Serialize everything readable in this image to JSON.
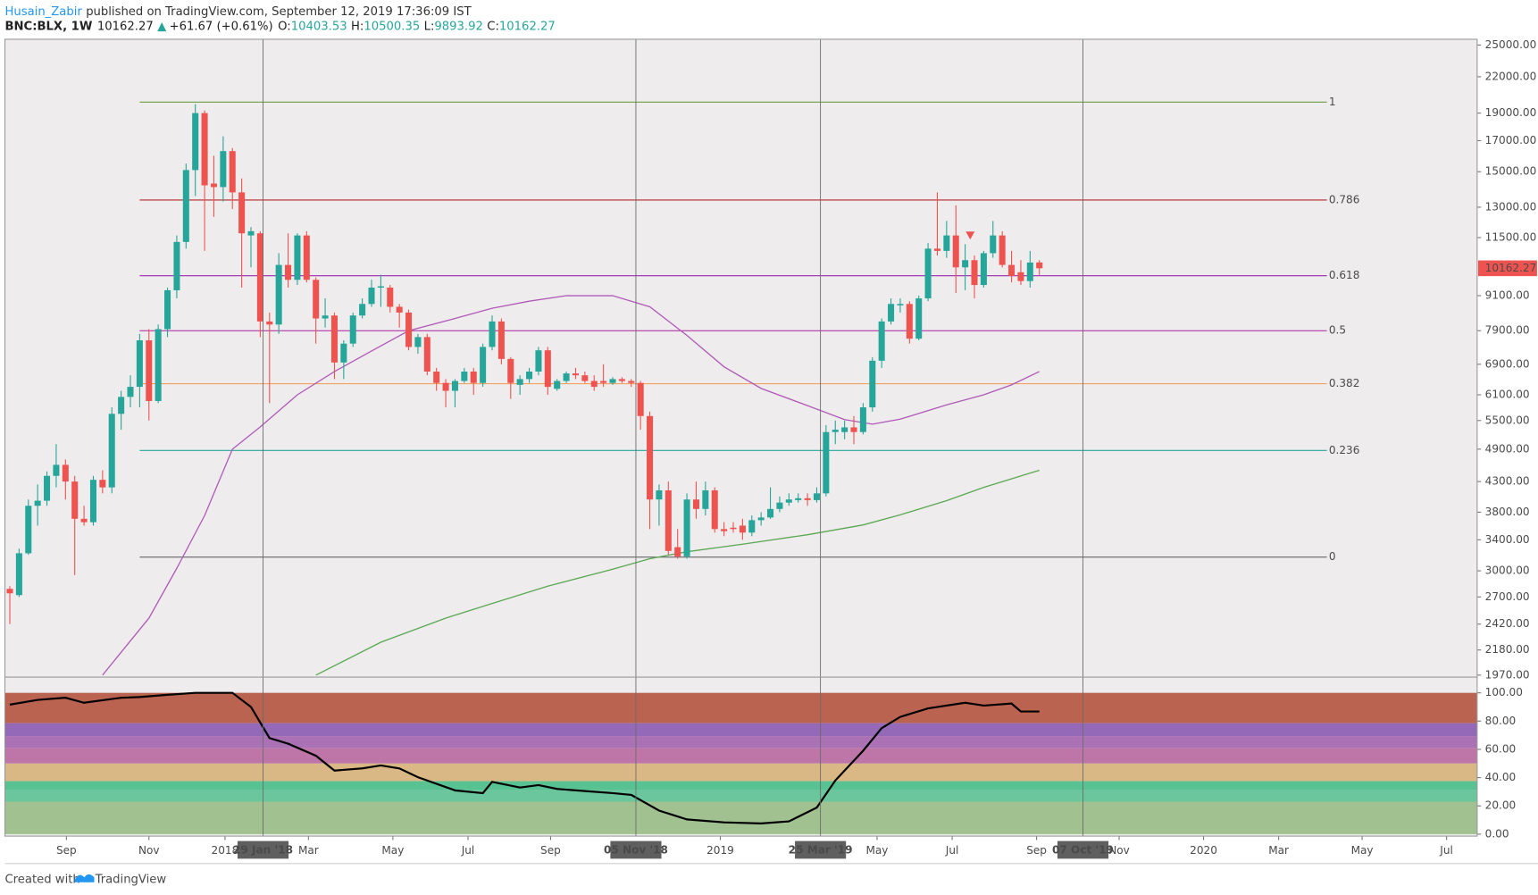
{
  "header": {
    "author": "Husain_Zabir",
    "published": "published on TradingView.com, September 12, 2019 17:36:09 IST",
    "symbol": "BNC:BLX, 1W",
    "price": "10162.27",
    "arrow": "▲",
    "change": "+61.67 (+0.61%)",
    "o_label": "O:",
    "o": "10403.53",
    "h_label": "H:",
    "h": "10500.35",
    "l_label": "L:",
    "l": "9893.92",
    "c_label": "C:",
    "c": "10162.27"
  },
  "footer": {
    "created": "Created with",
    "brand": "TradingView"
  },
  "chart_data": [
    {
      "type": "candlestick",
      "log": true,
      "up_color": "#26a69a",
      "down_color": "#ef5350",
      "open": [
        2790,
        2720,
        3220,
        3900,
        3980,
        4400,
        4600,
        4300,
        3700,
        3650,
        4330,
        4200,
        5650,
        6050,
        6300,
        7600,
        5950,
        7950,
        9300,
        11300,
        15100,
        19000,
        14300,
        14100,
        16300,
        13800,
        11600,
        11700,
        8200,
        8100,
        10300,
        9700,
        11600,
        9700,
        8300,
        8400,
        6950,
        7500,
        8400,
        8800,
        9400,
        9400,
        8700,
        8500,
        7400,
        7700,
        6700,
        6400,
        6200,
        6450,
        6700,
        6400,
        7400,
        8200,
        7050,
        6350,
        6500,
        6700,
        7300,
        6250,
        6450,
        6650,
        6600,
        6450,
        6450,
        6400,
        6500,
        6450,
        6400,
        5600,
        4000,
        4150,
        3300,
        3180,
        4000,
        3850,
        4150,
        3550,
        3570,
        3600,
        3500,
        3680,
        3720,
        3850,
        3950,
        3990,
        4020,
        3990,
        4100,
        5250,
        5250,
        5350,
        5250,
        5800,
        7000,
        8200,
        8750,
        8800,
        7650,
        9000,
        11000,
        10900,
        11600,
        10200,
        10500,
        9500,
        10800,
        11600,
        10300,
        10000,
        9650,
        10403.53
      ],
      "high": [
        2820,
        3280,
        4000,
        4250,
        4480,
        5000,
        4700,
        4400,
        3900,
        4400,
        4500,
        5800,
        6200,
        6600,
        7800,
        7950,
        8100,
        9400,
        11600,
        15500,
        19700,
        19200,
        16000,
        17300,
        16500,
        14600,
        12000,
        11800,
        8500,
        10800,
        11700,
        11700,
        11800,
        9800,
        9000,
        8500,
        7600,
        8500,
        9000,
        9700,
        9900,
        9500,
        8800,
        8600,
        7800,
        7800,
        6800,
        6500,
        6500,
        6800,
        6800,
        7500,
        8400,
        8300,
        7100,
        6600,
        6800,
        7400,
        7400,
        6500,
        6700,
        6800,
        6700,
        6600,
        6900,
        6550,
        6550,
        6500,
        6450,
        5700,
        4250,
        4300,
        3550,
        4100,
        4300,
        4300,
        4200,
        3650,
        3650,
        3700,
        3750,
        3800,
        4200,
        4050,
        4100,
        4100,
        4100,
        4200,
        5400,
        5500,
        5500,
        5600,
        5900,
        7100,
        8300,
        9000,
        9000,
        8900,
        9100,
        11250,
        13800,
        12300,
        13100,
        11200,
        10700,
        10900,
        12300,
        11800,
        10900,
        10500,
        10900,
        10500.35
      ],
      "low": [
        2420,
        2700,
        3200,
        3600,
        3900,
        4200,
        4000,
        2950,
        3600,
        3600,
        4100,
        4100,
        5300,
        5800,
        5800,
        5500,
        5900,
        7700,
        9000,
        11000,
        13600,
        10900,
        12500,
        13300,
        12900,
        9400,
        10200,
        7700,
        5900,
        7800,
        9400,
        9500,
        9600,
        7500,
        8000,
        6500,
        6500,
        7400,
        8300,
        8700,
        8700,
        8500,
        8000,
        7300,
        7200,
        6600,
        6200,
        5800,
        5800,
        6400,
        6100,
        6300,
        7300,
        6900,
        6000,
        6100,
        6400,
        6600,
        6100,
        6200,
        6400,
        6500,
        6400,
        6200,
        6300,
        6350,
        6400,
        6300,
        5300,
        3550,
        3600,
        3200,
        3150,
        3150,
        3700,
        3750,
        3500,
        3450,
        3500,
        3400,
        3450,
        3600,
        3700,
        3800,
        3900,
        3950,
        3900,
        3950,
        4050,
        5000,
        5100,
        5000,
        5200,
        5700,
        6800,
        8100,
        8500,
        7500,
        7600,
        8900,
        10700,
        10600,
        9200,
        9300,
        9000,
        9400,
        10600,
        10200,
        9600,
        9500,
        9400,
        9893.92
      ],
      "close": [
        2740,
        3220,
        3900,
        3980,
        4400,
        4600,
        4300,
        3700,
        3650,
        4330,
        4200,
        5650,
        6050,
        6300,
        7600,
        5950,
        7950,
        9300,
        11300,
        15100,
        19000,
        14200,
        14100,
        16300,
        13800,
        11700,
        11800,
        8200,
        8100,
        10300,
        9700,
        11600,
        9700,
        8300,
        8400,
        6950,
        7500,
        8400,
        8800,
        9400,
        9450,
        8700,
        8500,
        7400,
        7700,
        6700,
        6400,
        6200,
        6450,
        6700,
        6400,
        7400,
        8200,
        7050,
        6400,
        6500,
        6700,
        7300,
        6300,
        6450,
        6650,
        6600,
        6450,
        6300,
        6400,
        6500,
        6450,
        6400,
        5600,
        4000,
        4150,
        3250,
        3180,
        4000,
        3850,
        4150,
        3550,
        3520,
        3550,
        3500,
        3680,
        3720,
        3850,
        3950,
        4000,
        4020,
        3990,
        4100,
        5250,
        5300,
        5350,
        5250,
        5800,
        7000,
        8200,
        8800,
        8800,
        7650,
        9000,
        11000,
        10900,
        11600,
        10200,
        10500,
        9500,
        10800,
        11600,
        10300,
        9850,
        9650,
        10400,
        10162.27
      ],
      "series": [
        {
          "color": "#b05ab8",
          "x": [
            10,
            15,
            18,
            21,
            24,
            27,
            31,
            35,
            39,
            43,
            48,
            52,
            56,
            60,
            65,
            69,
            73,
            77,
            81,
            86,
            90,
            93,
            96,
            101,
            105,
            108,
            111
          ],
          "values": [
            1970,
            2480,
            3030,
            3750,
            4900,
            5360,
            6100,
            6700,
            7280,
            7900,
            8300,
            8650,
            8900,
            9100,
            9100,
            8700,
            7750,
            6830,
            6260,
            5840,
            5520,
            5420,
            5530,
            5860,
            6100,
            6350,
            6700
          ]
        },
        {
          "color": "#5aa854",
          "x": [
            33,
            40,
            47,
            52,
            58,
            65,
            69,
            73,
            79,
            86,
            92,
            96,
            101,
            105,
            111
          ],
          "values": [
            1970,
            2250,
            2480,
            2630,
            2820,
            3020,
            3150,
            3240,
            3340,
            3470,
            3610,
            3760,
            3980,
            4200,
            4500
          ]
        }
      ],
      "levels": [
        {
          "label": "1",
          "value": 19860,
          "color": "#6e9f44"
        },
        {
          "label": "0.786",
          "value": 13380,
          "color": "#b3272d"
        },
        {
          "label": "0.618",
          "value": 9860,
          "color": "#9c27b0"
        },
        {
          "label": "0.5",
          "value": 7900,
          "color": "#a8219b"
        },
        {
          "label": "0.382",
          "value": 6380,
          "color": "#f4a261"
        },
        {
          "label": "0.236",
          "value": 4875,
          "color": "#26a69a"
        },
        {
          "label": "0",
          "value": 3170,
          "color": "#555555"
        }
      ],
      "level_x": [
        14,
        142
      ],
      "xlim": [
        -0.53,
        158.2
      ],
      "xticks": [
        {
          "value": 6.1,
          "label": "Sep"
        },
        {
          "value": 15,
          "label": "Nov"
        },
        {
          "value": 23.2,
          "label": "2018"
        },
        {
          "value": 32.2,
          "label": "Mar"
        },
        {
          "value": 41.3,
          "label": "May"
        },
        {
          "value": 49.4,
          "label": "Jul"
        },
        {
          "value": 58.3,
          "label": "Sep"
        },
        {
          "value": 76.6,
          "label": "2019"
        },
        {
          "value": 93.5,
          "label": "May"
        },
        {
          "value": 101.6,
          "label": "Jul"
        },
        {
          "value": 110.7,
          "label": "Sep"
        },
        {
          "value": 119.6,
          "label": "Nov"
        },
        {
          "value": 128.7,
          "label": "2020"
        },
        {
          "value": 136.8,
          "label": "Mar"
        },
        {
          "value": 145.8,
          "label": "May"
        },
        {
          "value": 154.9,
          "label": "Jul"
        }
      ],
      "markers": [
        {
          "value": 27.3,
          "label": "29 Jan '18"
        },
        {
          "value": 67.5,
          "label": "05 Nov '18"
        },
        {
          "value": 87.4,
          "label": "25 Mar '19"
        },
        {
          "value": 115.7,
          "label": "07 Oct '19"
        }
      ],
      "ylim": [
        1954,
        25590
      ],
      "yticks": [
        {
          "value": 25000,
          "label": "25000.00"
        },
        {
          "value": 22000,
          "label": "22000.00"
        },
        {
          "value": 19000,
          "label": "19000.00"
        },
        {
          "value": 17000,
          "label": "17000.00"
        },
        {
          "value": 15000,
          "label": "15000.00"
        },
        {
          "value": 13000,
          "label": "13000.00"
        },
        {
          "value": 11500,
          "label": "11500.00"
        },
        {
          "value": 9100,
          "label": "9100.00"
        },
        {
          "value": 7900,
          "label": "7900.00"
        },
        {
          "value": 6900,
          "label": "6900.00"
        },
        {
          "value": 6100,
          "label": "6100.00"
        },
        {
          "value": 5500,
          "label": "5500.00"
        },
        {
          "value": 4900,
          "label": "4900.00"
        },
        {
          "value": 4300,
          "label": "4300.00"
        },
        {
          "value": 3800,
          "label": "3800.00"
        },
        {
          "value": 3400,
          "label": "3400.00"
        },
        {
          "value": 3000,
          "label": "3000.00"
        },
        {
          "value": 2700,
          "label": "2700.00"
        },
        {
          "value": 2420,
          "label": "2420.00"
        },
        {
          "value": 2180,
          "label": "2180.00"
        },
        {
          "value": 1970,
          "label": "1970.00"
        }
      ]
    },
    {
      "type": "line",
      "color": "#000000",
      "x": [
        0,
        3,
        6,
        8,
        12,
        14,
        17,
        20,
        24,
        26,
        28,
        30,
        33,
        35,
        38,
        40,
        42,
        44,
        48,
        51,
        52,
        55,
        57,
        59,
        62,
        65,
        67,
        70,
        73,
        77,
        81,
        84,
        87,
        89,
        92,
        94,
        96,
        99,
        103,
        105,
        108,
        109,
        111
      ],
      "values": [
        91.7,
        95,
        96.5,
        93,
        96.5,
        97,
        98.6,
        100,
        100,
        90,
        68,
        64,
        55.5,
        45,
        46.5,
        48.6,
        46.5,
        40.3,
        31,
        29,
        37,
        33,
        34.7,
        32,
        30.5,
        29,
        27.8,
        16.7,
        10.4,
        8.3,
        7.6,
        9,
        18.8,
        38,
        59,
        75,
        83,
        89,
        93,
        91,
        92.4,
        86.8,
        86.8
      ],
      "bands": [
        {
          "from": 78.5,
          "to": 100,
          "color": "#b65c49"
        },
        {
          "from": 69.4,
          "to": 78.5,
          "color": "#8e62b4"
        },
        {
          "from": 61,
          "to": 69.4,
          "color": "#a56ab2"
        },
        {
          "from": 50,
          "to": 61,
          "color": "#bb70a4"
        },
        {
          "from": 37.5,
          "to": 50,
          "color": "#d8b57f"
        },
        {
          "from": 31,
          "to": 37.5,
          "color": "#4fc08d"
        },
        {
          "from": 23,
          "to": 31,
          "color": "#63c499"
        },
        {
          "from": 0,
          "to": 23,
          "color": "#9cc08b"
        }
      ],
      "ylim": [
        0,
        100
      ],
      "yticks": [
        {
          "value": 100,
          "label": "100.00"
        },
        {
          "value": 80,
          "label": "80.00"
        },
        {
          "value": 60,
          "label": "60.00"
        },
        {
          "value": 40,
          "label": "40.00"
        },
        {
          "value": 20,
          "label": "20.00"
        },
        {
          "value": 0,
          "label": "0.00"
        }
      ]
    }
  ]
}
